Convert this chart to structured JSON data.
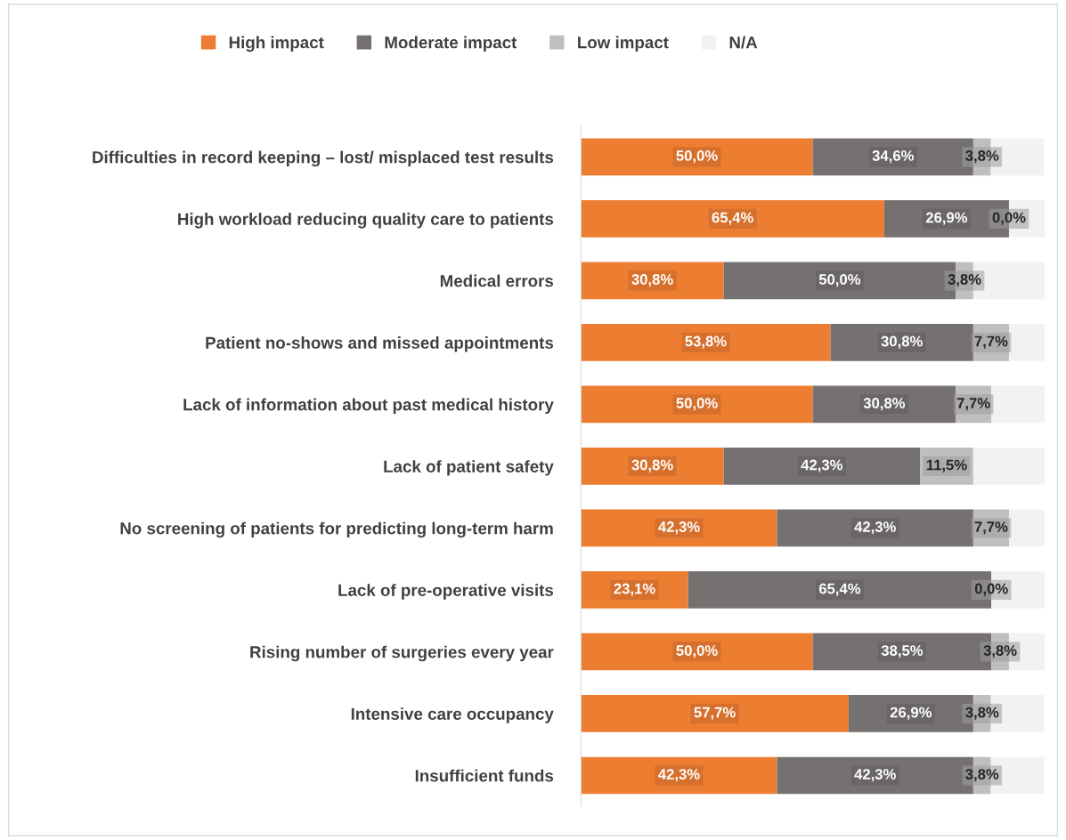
{
  "chart_data": {
    "type": "bar",
    "orientation": "horizontal",
    "stacked": true,
    "legend": "top",
    "categories": [
      "Difficulties in record keeping – lost/ misplaced test results",
      "High workload reducing quality care to patients",
      "Medical errors",
      "Patient no-shows and missed appointments",
      "Lack of information about past medical history",
      "Lack of patient safety",
      "No screening of patients for predicting long-term harm",
      "Lack of pre-operative visits",
      "Rising number of surgeries every year",
      "Intensive care occupancy",
      "Insufficient funds"
    ],
    "series": [
      {
        "name": "High impact",
        "color": "#ed7d31",
        "values": [
          50.0,
          65.4,
          30.8,
          53.8,
          50.0,
          30.8,
          42.3,
          23.1,
          50.0,
          57.7,
          42.3
        ],
        "value_labels": [
          "50,0%",
          "65,4%",
          "30,8%",
          "53,8%",
          "50,0%",
          "30,8%",
          "42,3%",
          "23,1%",
          "50,0%",
          "57,7%",
          "42,3%"
        ]
      },
      {
        "name": "Moderate impact",
        "color": "#767171",
        "values": [
          34.6,
          26.9,
          50.0,
          30.8,
          30.8,
          42.3,
          42.3,
          65.4,
          38.5,
          26.9,
          42.3
        ],
        "value_labels": [
          "34,6%",
          "26,9%",
          "50,0%",
          "30,8%",
          "30,8%",
          "42,3%",
          "42,3%",
          "65,4%",
          "38,5%",
          "26,9%",
          "42,3%"
        ]
      },
      {
        "name": "Low impact",
        "color": "#bfbfbf",
        "values": [
          3.8,
          0.0,
          3.8,
          7.7,
          7.7,
          11.5,
          7.7,
          0.0,
          3.8,
          3.8,
          3.8
        ],
        "value_labels": [
          "3,8%",
          "0,0%",
          "3,8%",
          "7,7%",
          "7,7%",
          "11,5%",
          "7,7%",
          "0,0%",
          "3,8%",
          "3,8%",
          "3,8%"
        ]
      },
      {
        "name": "N/A",
        "color": "#f2f2f2",
        "values": [
          11.5,
          7.7,
          15.4,
          7.7,
          11.5,
          15.4,
          7.7,
          11.5,
          7.7,
          11.5,
          11.5
        ]
      }
    ]
  }
}
